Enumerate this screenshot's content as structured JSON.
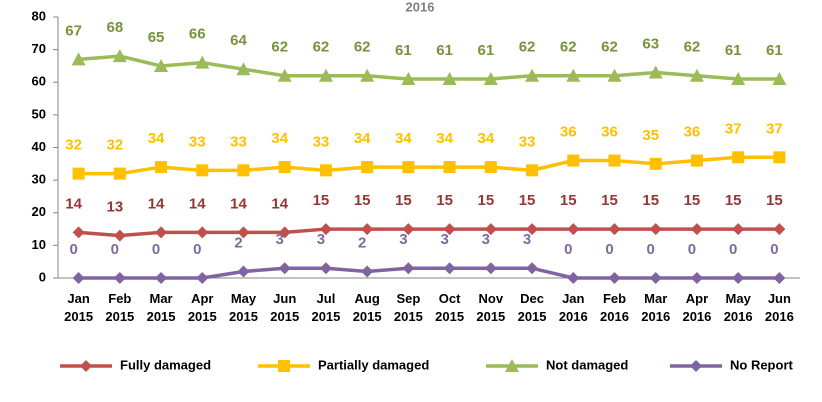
{
  "chart_data": {
    "type": "line",
    "title": "2016",
    "categories": [
      "Jan 2015",
      "Feb 2015",
      "Mar 2015",
      "Apr 2015",
      "May 2015",
      "Jun 2015",
      "Jul 2015",
      "Aug 2015",
      "Sep 2015",
      "Oct 2015",
      "Nov 2015",
      "Dec 2015",
      "Jan 2016",
      "Feb 2016",
      "Mar 2016",
      "Apr 2016",
      "May 2016",
      "Jun 2016"
    ],
    "series": [
      {
        "name": "Fully damaged",
        "color": "#c0504d",
        "label_color": "#953735",
        "marker": "diamond",
        "values": [
          14,
          13,
          14,
          14,
          14,
          14,
          15,
          15,
          15,
          15,
          15,
          15,
          15,
          15,
          15,
          15,
          15,
          15
        ]
      },
      {
        "name": "Partially damaged",
        "color": "#ffc000",
        "label_color": "#ffc000",
        "marker": "square",
        "values": [
          32,
          32,
          34,
          33,
          33,
          34,
          33,
          34,
          34,
          34,
          34,
          33,
          36,
          36,
          35,
          36,
          37,
          37
        ]
      },
      {
        "name": "Not damaged",
        "color": "#9bbb59",
        "label_color": "#77933c",
        "marker": "triangle",
        "values": [
          67,
          68,
          65,
          66,
          64,
          62,
          62,
          62,
          61,
          61,
          61,
          62,
          62,
          62,
          63,
          62,
          61,
          61
        ]
      },
      {
        "name": "No Report",
        "color": "#8064a2",
        "label_color": "#7f6a9f",
        "marker": "diamond",
        "values": [
          0,
          0,
          0,
          0,
          2,
          3,
          3,
          2,
          3,
          3,
          3,
          3,
          0,
          0,
          0,
          0,
          0,
          0
        ]
      }
    ],
    "ylim": [
      0,
      80
    ],
    "yticks": [
      0,
      10,
      20,
      30,
      40,
      50,
      60,
      70,
      80
    ],
    "grid": false,
    "legend": "bottom"
  }
}
